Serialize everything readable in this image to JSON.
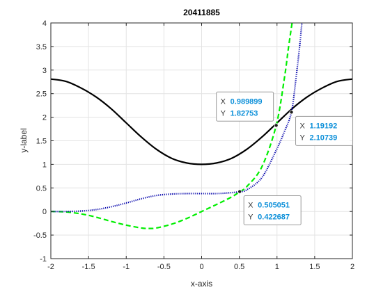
{
  "chart_data": {
    "type": "line",
    "title": "20411885",
    "xlabel": "x-axis",
    "ylabel": "y-label",
    "xlim": [
      -2,
      2
    ],
    "ylim": [
      -1,
      4
    ],
    "grid": true,
    "xticks": [
      -2,
      -1.5,
      -1,
      -0.5,
      0,
      0.5,
      1,
      1.5,
      2
    ],
    "xtick_labels": [
      "-2",
      "-1.5",
      "-1",
      "-0.5",
      "0",
      "0.5",
      "1",
      "1.5",
      "2"
    ],
    "yticks": [
      -1,
      -0.5,
      0,
      0.5,
      1,
      1.5,
      2,
      2.5,
      3,
      3.5,
      4
    ],
    "ytick_labels": [
      "-1",
      "-0.5",
      "0",
      "0.5",
      "1",
      "1.5",
      "2",
      "2.5",
      "3",
      "3.5",
      "4"
    ],
    "series": [
      {
        "name": "black solid",
        "style": "solid",
        "color": "#000000",
        "x": [
          -2,
          -1.8,
          -1.6,
          -1.4,
          -1.2,
          -1.0,
          -0.8,
          -0.6,
          -0.4,
          -0.2,
          0,
          0.2,
          0.4,
          0.6,
          0.8,
          1.0,
          1.2,
          1.4,
          1.6,
          1.8,
          2.0
        ],
        "y": [
          2.81,
          2.76,
          2.62,
          2.43,
          2.18,
          1.88,
          1.58,
          1.32,
          1.13,
          1.03,
          1.0,
          1.03,
          1.13,
          1.32,
          1.58,
          1.88,
          2.18,
          2.43,
          2.62,
          2.76,
          2.81
        ]
      },
      {
        "name": "green dashed",
        "style": "dashed",
        "color": "#00ee00",
        "x": [
          -2,
          -1.8,
          -1.6,
          -1.4,
          -1.2,
          -1.0,
          -0.8,
          -0.7,
          -0.6,
          -0.4,
          -0.2,
          0,
          0.2,
          0.4,
          0.505,
          0.6,
          0.8,
          0.99,
          1.1,
          1.15,
          1.2
        ],
        "y": [
          0.0,
          -0.01,
          -0.05,
          -0.12,
          -0.21,
          -0.29,
          -0.35,
          -0.36,
          -0.35,
          -0.27,
          -0.15,
          0.0,
          0.15,
          0.31,
          0.42,
          0.53,
          0.95,
          1.83,
          2.85,
          3.45,
          4.0
        ]
      },
      {
        "name": "blue dotted",
        "style": "dotted",
        "color": "#0000aa",
        "x": [
          -2,
          -1.8,
          -1.6,
          -1.4,
          -1.2,
          -1.0,
          -0.8,
          -0.6,
          -0.4,
          -0.2,
          0,
          0.2,
          0.4,
          0.505,
          0.6,
          0.8,
          0.99,
          1.1,
          1.192,
          1.25,
          1.3,
          1.33
        ],
        "y": [
          0.0,
          0.0,
          0.01,
          0.04,
          0.1,
          0.18,
          0.27,
          0.34,
          0.37,
          0.38,
          0.38,
          0.38,
          0.4,
          0.42,
          0.46,
          0.72,
          1.3,
          1.7,
          2.11,
          2.8,
          3.5,
          4.0
        ]
      }
    ],
    "annotations": [
      {
        "x": 0.505051,
        "y": 0.422687,
        "x_text": "0.505051",
        "y_text": "0.422687",
        "box": "below-right"
      },
      {
        "x": 0.989899,
        "y": 1.82753,
        "x_text": "0.989899",
        "y_text": "1.82753",
        "box": "above-left"
      },
      {
        "x": 1.19192,
        "y": 2.10739,
        "x_text": "1.19192",
        "y_text": "2.10739",
        "box": "below-right"
      }
    ],
    "tip_x_key": "X",
    "tip_y_key": "Y"
  }
}
